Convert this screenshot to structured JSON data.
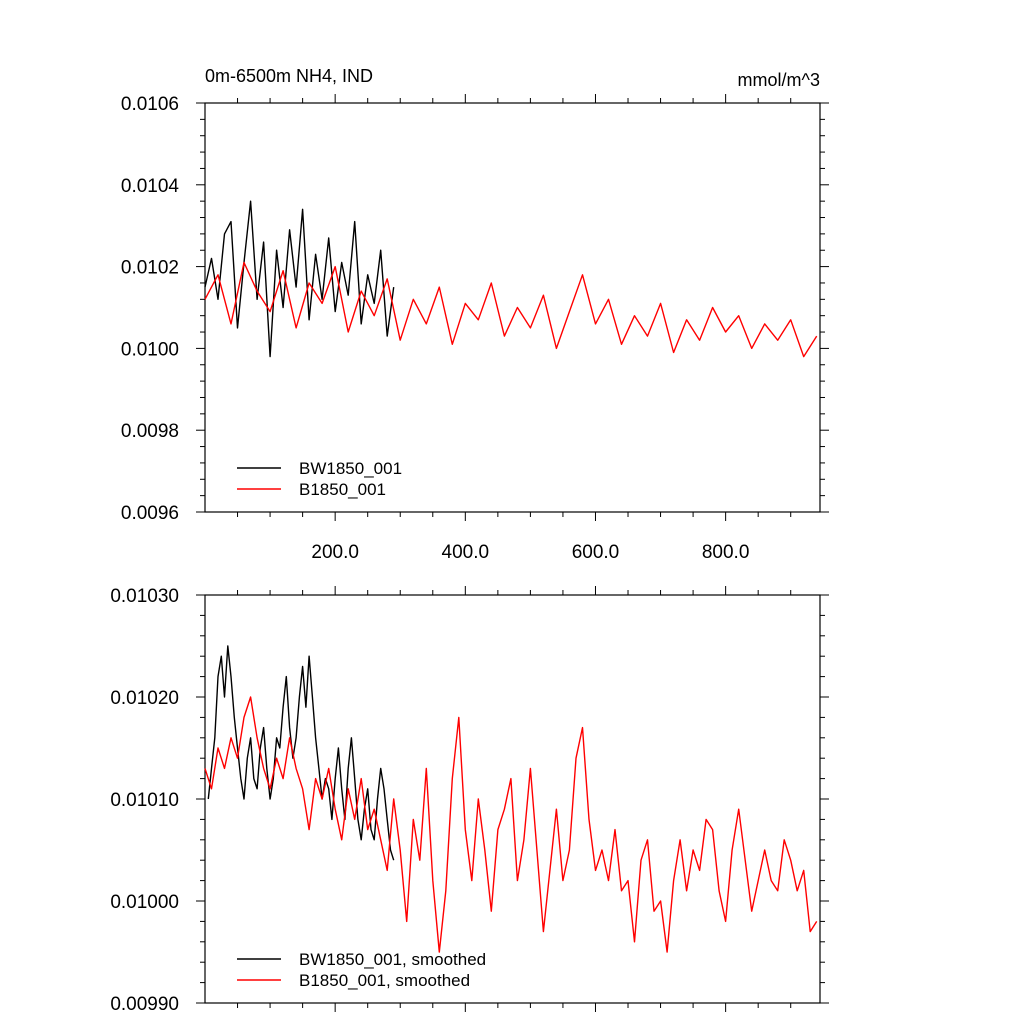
{
  "chart_data": [
    {
      "type": "line",
      "title": "0m-6500m NH4, IND",
      "units": "mmol/m^3",
      "xlim": [
        0,
        945
      ],
      "ylim": [
        0.0096,
        0.0106
      ],
      "x_tick_values": [
        200,
        400,
        600,
        800
      ],
      "x_tick_labels": [
        "200.0",
        "400.0",
        "600.0",
        "800.0"
      ],
      "y_tick_values": [
        0.0096,
        0.0098,
        0.01,
        0.0102,
        0.0104,
        0.0106
      ],
      "y_tick_labels": [
        "0.0096",
        "0.0098",
        "0.0100",
        "0.0102",
        "0.0104",
        "0.0106"
      ],
      "legend_position": "bottom-left",
      "series": [
        {
          "name": "BW1850_001",
          "color": "#000000",
          "x": [
            0,
            10,
            20,
            30,
            40,
            50,
            60,
            70,
            80,
            90,
            100,
            110,
            120,
            130,
            140,
            150,
            160,
            170,
            180,
            190,
            200,
            210,
            220,
            230,
            240,
            250,
            260,
            270,
            280,
            290
          ],
          "y": [
            0.01015,
            0.01022,
            0.01012,
            0.01028,
            0.01031,
            0.01005,
            0.01021,
            0.01036,
            0.01012,
            0.01026,
            0.00998,
            0.01024,
            0.0101,
            0.01029,
            0.01015,
            0.01034,
            0.01007,
            0.01023,
            0.01012,
            0.01027,
            0.01009,
            0.01021,
            0.01013,
            0.01031,
            0.01006,
            0.01018,
            0.01011,
            0.01024,
            0.01003,
            0.01015
          ]
        },
        {
          "name": "B1850_001",
          "color": "#ff0000",
          "x": [
            0,
            20,
            40,
            60,
            80,
            100,
            120,
            140,
            160,
            180,
            200,
            220,
            240,
            260,
            280,
            300,
            320,
            340,
            360,
            380,
            400,
            420,
            440,
            460,
            480,
            500,
            520,
            540,
            560,
            580,
            600,
            620,
            640,
            660,
            680,
            700,
            720,
            740,
            760,
            780,
            800,
            820,
            840,
            860,
            880,
            900,
            920,
            940
          ],
          "y": [
            0.01012,
            0.01018,
            0.01006,
            0.01021,
            0.01014,
            0.01009,
            0.01019,
            0.01005,
            0.01016,
            0.01011,
            0.0102,
            0.01004,
            0.01014,
            0.01008,
            0.01017,
            0.01002,
            0.01012,
            0.01006,
            0.01015,
            0.01001,
            0.01011,
            0.01007,
            0.01016,
            0.01003,
            0.0101,
            0.01005,
            0.01013,
            0.01,
            0.01009,
            0.01018,
            0.01006,
            0.01012,
            0.01001,
            0.01008,
            0.01003,
            0.01011,
            0.00999,
            0.01007,
            0.01002,
            0.0101,
            0.01004,
            0.01008,
            0.01,
            0.01006,
            0.01002,
            0.01007,
            0.00998,
            0.01003
          ]
        }
      ]
    },
    {
      "type": "line",
      "xlim": [
        0,
        945
      ],
      "ylim": [
        0.0099,
        0.0103
      ],
      "y_tick_values": [
        0.0099,
        0.01,
        0.0101,
        0.0102,
        0.0103
      ],
      "y_tick_labels": [
        "0.00990",
        "0.01000",
        "0.01010",
        "0.01020",
        "0.01030"
      ],
      "legend_position": "bottom-left",
      "series": [
        {
          "name": "BW1850_001, smoothed",
          "color": "#000000",
          "x": [
            5,
            10,
            15,
            20,
            25,
            30,
            35,
            40,
            45,
            50,
            55,
            60,
            65,
            70,
            75,
            80,
            85,
            90,
            95,
            100,
            105,
            110,
            115,
            120,
            125,
            130,
            135,
            140,
            145,
            150,
            155,
            160,
            165,
            170,
            175,
            180,
            185,
            190,
            195,
            200,
            205,
            210,
            215,
            220,
            225,
            230,
            235,
            240,
            245,
            250,
            255,
            260,
            265,
            270,
            275,
            280,
            285,
            290
          ],
          "y": [
            0.0101,
            0.01013,
            0.01016,
            0.01022,
            0.01024,
            0.0102,
            0.01025,
            0.01022,
            0.01018,
            0.01015,
            0.01012,
            0.0101,
            0.01014,
            0.01016,
            0.01012,
            0.01011,
            0.01015,
            0.01017,
            0.01013,
            0.0101,
            0.01012,
            0.01016,
            0.01015,
            0.01019,
            0.01022,
            0.01017,
            0.01014,
            0.01016,
            0.0102,
            0.01023,
            0.01019,
            0.01024,
            0.0102,
            0.01016,
            0.01013,
            0.0101,
            0.01012,
            0.01011,
            0.01008,
            0.01012,
            0.01015,
            0.01011,
            0.01008,
            0.01013,
            0.01016,
            0.01012,
            0.01008,
            0.01006,
            0.01009,
            0.01011,
            0.01007,
            0.01006,
            0.0101,
            0.01013,
            0.01011,
            0.01008,
            0.01005,
            0.01004
          ]
        },
        {
          "name": "B1850_001, smoothed",
          "color": "#ff0000",
          "x": [
            0,
            10,
            20,
            30,
            40,
            50,
            60,
            70,
            80,
            90,
            100,
            110,
            120,
            130,
            140,
            150,
            160,
            170,
            180,
            190,
            200,
            210,
            220,
            230,
            240,
            250,
            260,
            270,
            280,
            290,
            300,
            310,
            320,
            330,
            340,
            350,
            360,
            370,
            380,
            390,
            400,
            410,
            420,
            430,
            440,
            450,
            460,
            470,
            480,
            490,
            500,
            510,
            520,
            530,
            540,
            550,
            560,
            570,
            580,
            590,
            600,
            610,
            620,
            630,
            640,
            650,
            660,
            670,
            680,
            690,
            700,
            710,
            720,
            730,
            740,
            750,
            760,
            770,
            780,
            790,
            800,
            810,
            820,
            830,
            840,
            850,
            860,
            870,
            880,
            890,
            900,
            910,
            920,
            930,
            940
          ],
          "y": [
            0.01013,
            0.01011,
            0.01015,
            0.01013,
            0.01016,
            0.01014,
            0.01018,
            0.0102,
            0.01016,
            0.01013,
            0.01011,
            0.01014,
            0.01012,
            0.01016,
            0.01013,
            0.01011,
            0.01007,
            0.01012,
            0.0101,
            0.01013,
            0.01009,
            0.01006,
            0.01011,
            0.01008,
            0.01012,
            0.01007,
            0.01009,
            0.01006,
            0.01003,
            0.0101,
            0.01005,
            0.00998,
            0.01008,
            0.01004,
            0.01013,
            0.01002,
            0.00995,
            0.01001,
            0.01012,
            0.01018,
            0.01007,
            0.01002,
            0.0101,
            0.01005,
            0.00999,
            0.01007,
            0.01009,
            0.01012,
            0.01002,
            0.01006,
            0.01013,
            0.01005,
            0.00997,
            0.01003,
            0.01009,
            0.01002,
            0.01005,
            0.01014,
            0.01017,
            0.01008,
            0.01003,
            0.01005,
            0.01002,
            0.01007,
            0.01001,
            0.01002,
            0.00996,
            0.01004,
            0.01006,
            0.00999,
            0.01,
            0.00995,
            0.01002,
            0.01006,
            0.01001,
            0.01005,
            0.01003,
            0.01008,
            0.01007,
            0.01001,
            0.00998,
            0.01005,
            0.01009,
            0.01004,
            0.00999,
            0.01002,
            0.01005,
            0.01002,
            0.01001,
            0.01006,
            0.01004,
            0.01001,
            0.01003,
            0.00997,
            0.00998
          ]
        }
      ]
    }
  ]
}
